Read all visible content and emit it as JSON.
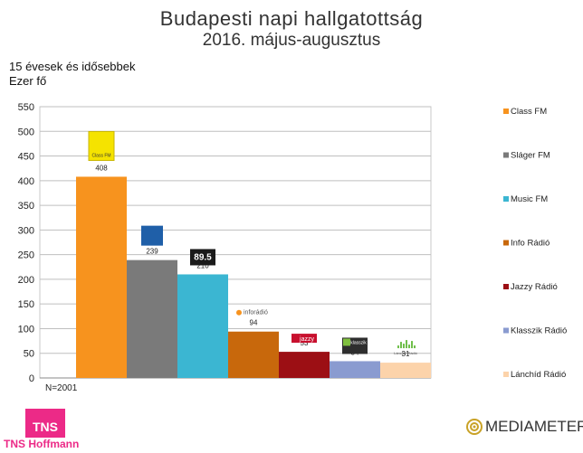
{
  "header": {
    "title": "Budapesti napi hallgatottság",
    "subtitle": "2016. május-augusztus"
  },
  "notes": {
    "population": "15 évesek és idősebbek",
    "unit": "Ezer fő",
    "sample": "N=2001"
  },
  "chart_data": {
    "type": "bar",
    "title": "Budapesti napi hallgatottság",
    "subtitle": "2016. május-augusztus",
    "ylabel": "Ezer fő",
    "ylim": [
      0,
      550
    ],
    "yticks": [
      0,
      50,
      100,
      150,
      200,
      250,
      300,
      350,
      400,
      450,
      500,
      550
    ],
    "grid": true,
    "legend_position": "right",
    "series": [
      {
        "name": "Class FM",
        "value": 408,
        "color": "#f7931e",
        "logo_text": "Class FM",
        "logo": "class-fm-logo"
      },
      {
        "name": "Sláger FM",
        "value": 239,
        "color": "#7a7a7a",
        "logo_text": "Sláger FM",
        "logo": "slager-fm-logo"
      },
      {
        "name": "Music FM",
        "value": 210,
        "color": "#3bb6d2",
        "logo_text": "89.5",
        "logo": "music-fm-logo"
      },
      {
        "name": "Info Rádió",
        "value": 94,
        "color": "#c8680c",
        "logo_text": "inforádió",
        "logo": "inforadio-logo"
      },
      {
        "name": "Jazzy Rádió",
        "value": 53,
        "color": "#9c0f14",
        "logo_text": "jazzy",
        "logo": "jazzy-radio-logo"
      },
      {
        "name": "Klasszik Rádió",
        "value": 34,
        "color": "#8a9bd0",
        "logo_text": "klasszik",
        "logo": "klasszik-radio-logo"
      },
      {
        "name": "Lánchíd Rádió",
        "value": 31,
        "color": "#fcd3aa",
        "logo_text": "Lánchíd Rádió",
        "logo": "lanchid-radio-logo"
      }
    ]
  },
  "branding": {
    "tns_logo": "TNS",
    "tns_name": "TNS Hoffmann",
    "mediameter": "MEDIAMETER"
  }
}
